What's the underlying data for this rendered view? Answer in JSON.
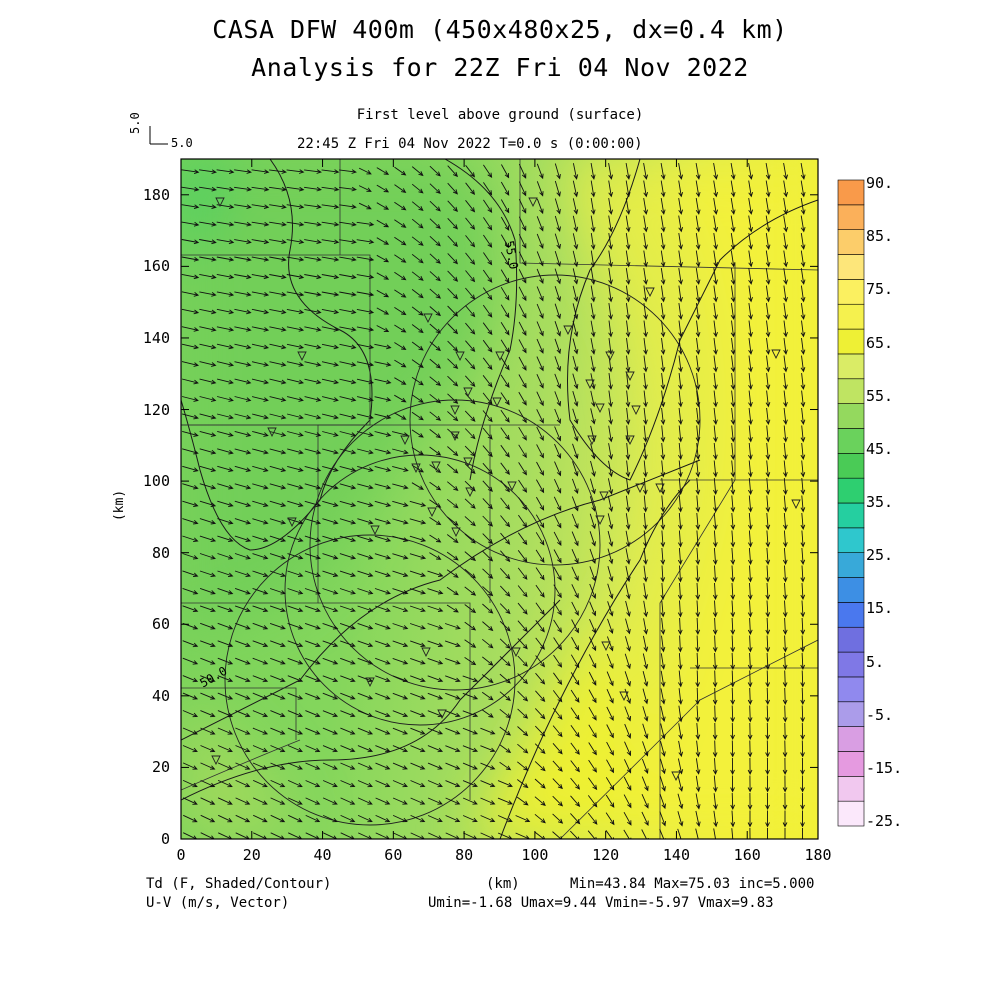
{
  "header": {
    "title_line1": "CASA DFW 400m (450x480x25, dx=0.4 km)",
    "title_line2": "Analysis for 22Z Fri 04 Nov 2022",
    "subtitle_line1": "First level above ground (surface)",
    "subtitle_line2": "22:45 Z Fri 04 Nov 2022    T=0.0 s (0:00:00)"
  },
  "vector_scale": {
    "label": "5.0",
    "rotated_label": "5.0"
  },
  "footer": {
    "left_line1": "Td (F, Shaded/Contour)",
    "left_line2": "U-V (m/s, Vector)",
    "center": "(km)",
    "right_line1": "Min=43.84 Max=75.03 inc=5.000",
    "right_line2": "Umin=-1.68 Umax=9.44 Vmin=-5.97 Vmax=9.83"
  },
  "chart_data": {
    "type": "heatmap",
    "field": "Td (F, Shaded/Contour)",
    "vector_field": "U-V (m/s, Vector)",
    "xlabel": "(km)",
    "ylabel": "(km)",
    "xlim": [
      0,
      180
    ],
    "ylim": [
      0,
      190
    ],
    "x_ticks": [
      "0",
      "20",
      "40",
      "60",
      "80",
      "100",
      "120",
      "140",
      "160",
      "180"
    ],
    "y_ticks": [
      "0",
      "20",
      "40",
      "60",
      "80",
      "100",
      "120",
      "140",
      "160",
      "180"
    ],
    "stats": {
      "min": 43.84,
      "max": 75.03,
      "inc": 5.0,
      "umin": -1.68,
      "umax": 9.44,
      "vmin": -5.97,
      "vmax": 9.83
    },
    "contour_labels": [
      {
        "text": "55.0",
        "x": 92,
        "y": 163
      },
      {
        "text": "50.0",
        "x": 8,
        "y": 45
      }
    ],
    "colorbar": {
      "labels": [
        "90.",
        "85.",
        "75.",
        "65.",
        "55.",
        "45.",
        "35.",
        "25.",
        "15.",
        "5.",
        "-5.",
        "-15.",
        "-25."
      ],
      "colors": [
        "#fbe8fb",
        "#f1c8ef",
        "#e59ae0",
        "#d99ee3",
        "#ab9cea",
        "#9089ee",
        "#7f78e6",
        "#6f6fe0",
        "#4a78ee",
        "#3d8fe4",
        "#38a9d9",
        "#2fc7cd",
        "#25cfa0",
        "#2ecf70",
        "#4acb56",
        "#6ad25c",
        "#94d95e",
        "#bfe462",
        "#daec66",
        "#eef035",
        "#f5f14e",
        "#fbf060",
        "#fde67a",
        "#fccd6a",
        "#fbb05a",
        "#f99a4a"
      ]
    }
  }
}
